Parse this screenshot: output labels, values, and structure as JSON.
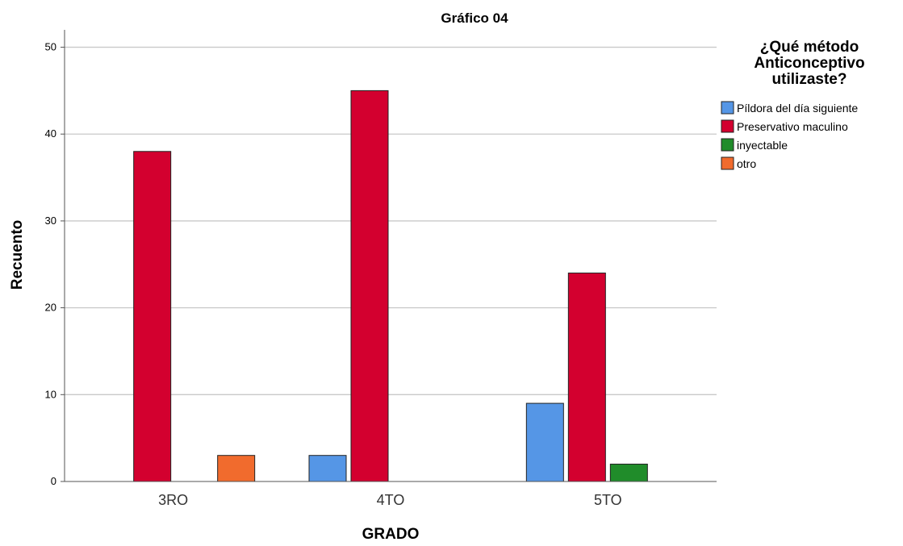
{
  "chart_data": {
    "type": "bar",
    "title": "Gráfico 04",
    "xlabel": "GRADO",
    "ylabel": "Recuento",
    "categories": [
      "3RO",
      "4TO",
      "5TO"
    ],
    "ylim": [
      0,
      52
    ],
    "yticks": [
      0,
      10,
      20,
      30,
      40,
      50
    ],
    "grid": true,
    "legend_title": [
      "¿Qué método",
      "Anticonceptivo",
      "utilizaste?"
    ],
    "legend_position": "right",
    "series": [
      {
        "name": "Píldora del día siguiente",
        "color": "#5596e6",
        "values": [
          0,
          3,
          9
        ]
      },
      {
        "name": "Preservativo maculino",
        "color": "#d3002f",
        "values": [
          38,
          45,
          24
        ]
      },
      {
        "name": "inyectable",
        "color": "#208c2a",
        "values": [
          0,
          0,
          2
        ]
      },
      {
        "name": "otro",
        "color": "#f16b2d",
        "values": [
          3,
          0,
          0
        ]
      }
    ]
  }
}
